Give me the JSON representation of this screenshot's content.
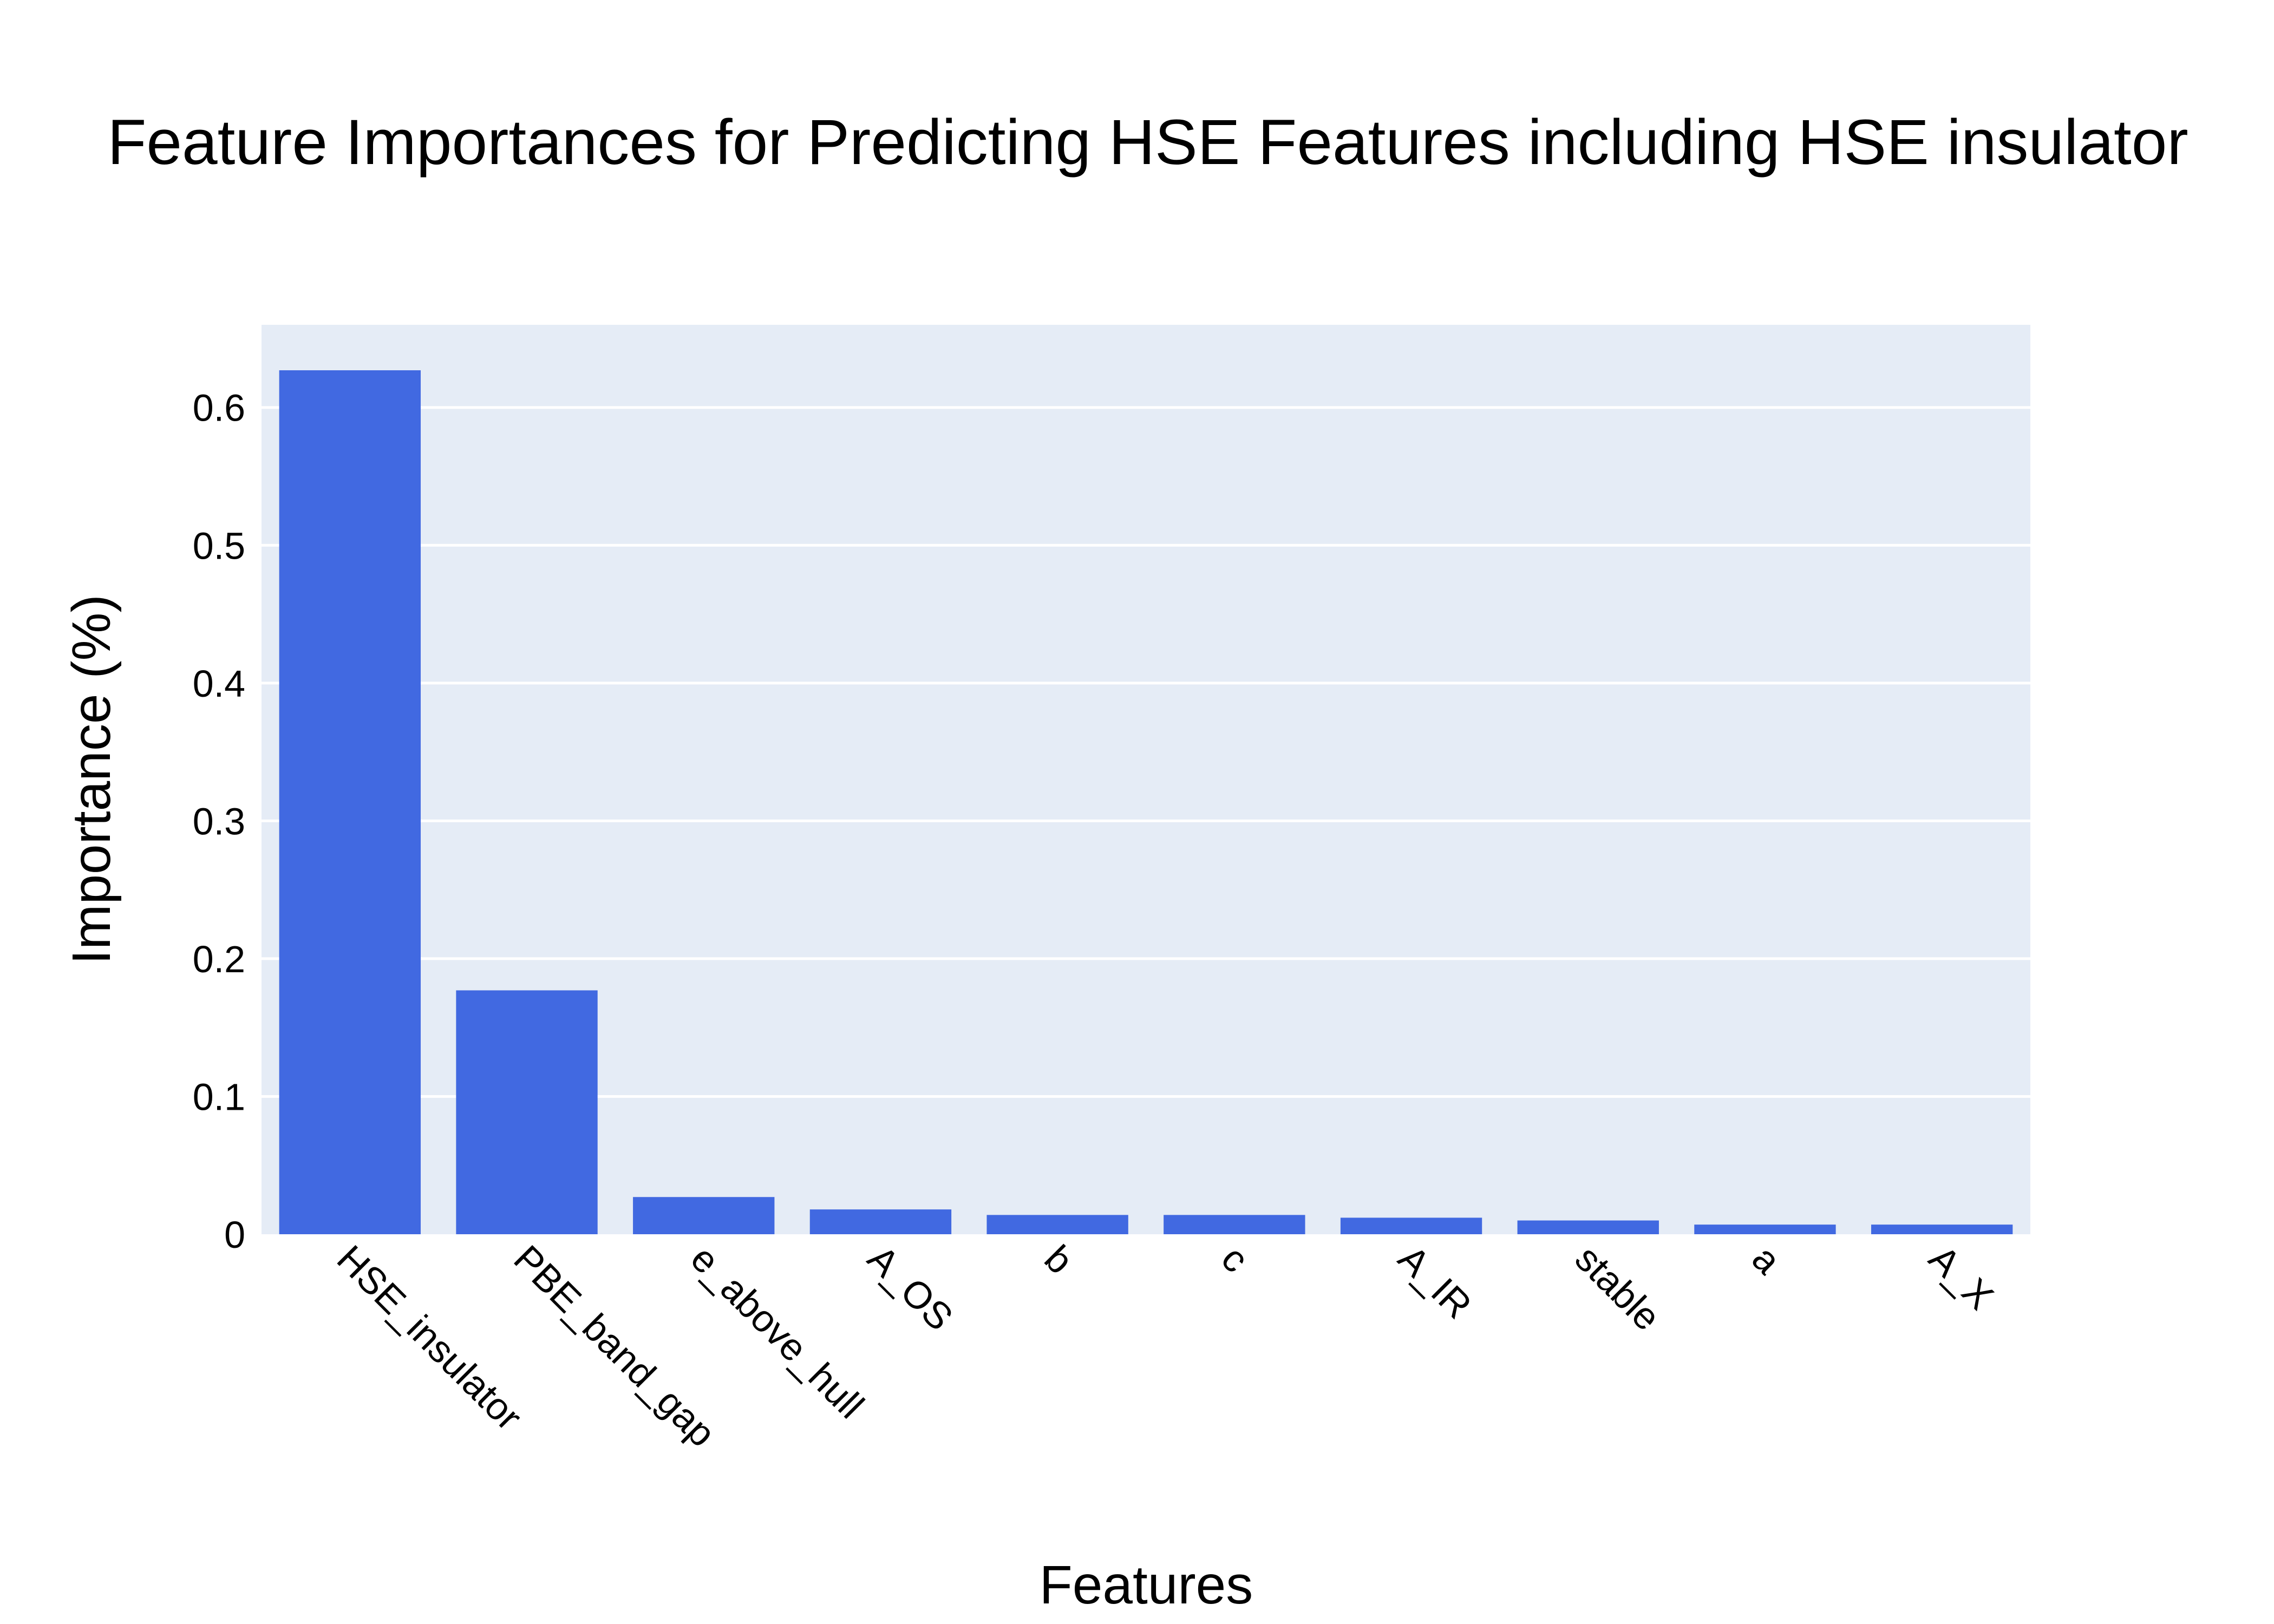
{
  "chart_data": {
    "type": "bar",
    "title": "Feature Importances for Predicting HSE Features including HSE insulator",
    "xlabel": "Features",
    "ylabel": "Importance (%)",
    "categories": [
      "HSE_insulator",
      "PBE_band_gap",
      "e_above_hull",
      "A_OS",
      "b",
      "c",
      "A_IR",
      "stable",
      "a",
      "A_X"
    ],
    "values": [
      0.627,
      0.177,
      0.027,
      0.018,
      0.014,
      0.014,
      0.012,
      0.01,
      0.007,
      0.007
    ],
    "ylim": [
      0,
      0.66
    ],
    "yticks": [
      0,
      0.1,
      0.2,
      0.3,
      0.4,
      0.5,
      0.6
    ],
    "ytick_labels": [
      "0",
      "0.1",
      "0.2",
      "0.3",
      "0.4",
      "0.5",
      "0.6"
    ],
    "grid": true,
    "bar_color": "#4169E1",
    "plot_background": "#E5ECF6",
    "gridline_color": "#FFFFFF"
  }
}
